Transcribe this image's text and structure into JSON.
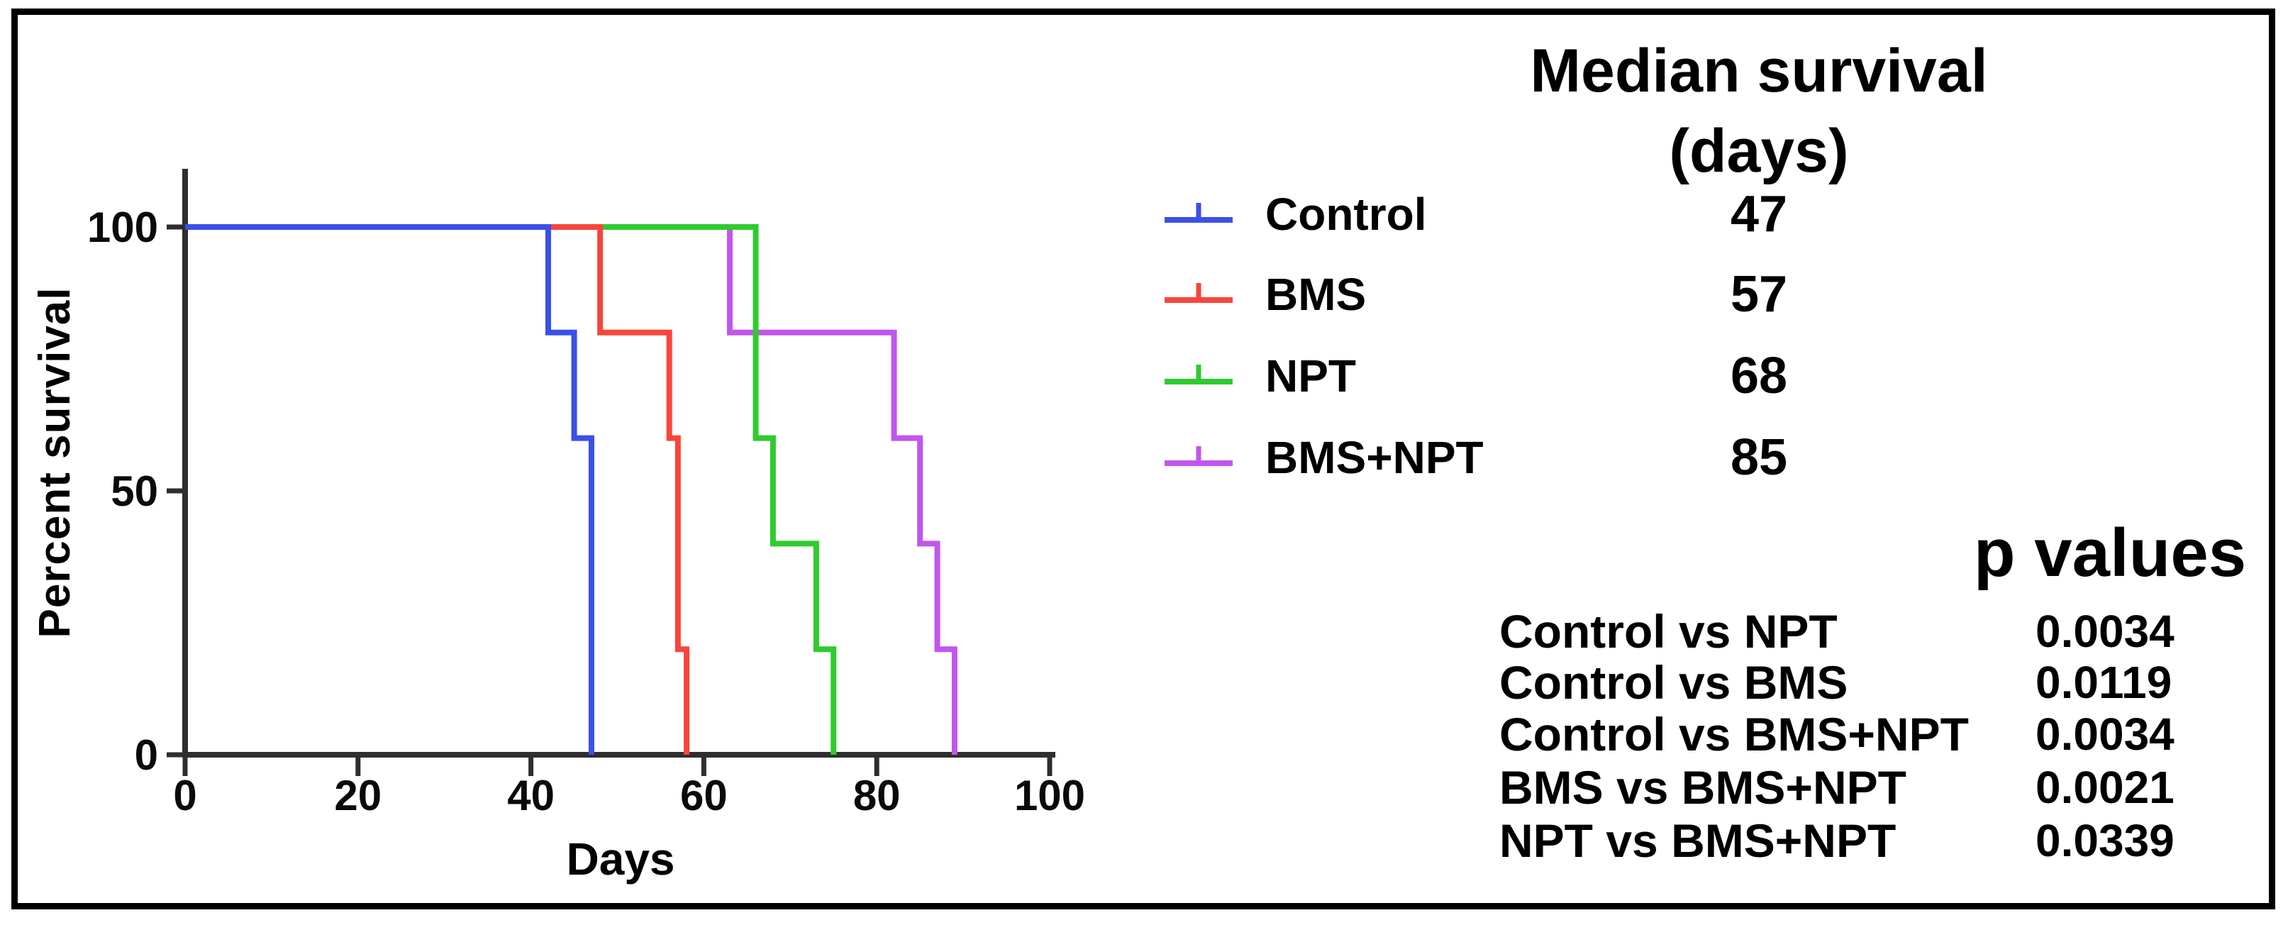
{
  "headings": {
    "median_line1": "Median survival",
    "median_line2": "(days)",
    "p_values": "p values"
  },
  "axes": {
    "xlabel": "Days",
    "ylabel": "Percent survival"
  },
  "chart_data": {
    "type": "line",
    "subtype": "kaplan-meier-step-survival",
    "xlabel": "Days",
    "ylabel": "Percent survival",
    "xlim": [
      0,
      100
    ],
    "ylim": [
      0,
      100
    ],
    "x_ticks": [
      0,
      20,
      40,
      60,
      80,
      100
    ],
    "y_ticks": [
      0,
      50,
      100
    ],
    "grid": false,
    "legend_position": "right",
    "series": [
      {
        "name": "Control",
        "color": "#3A50E8",
        "median_survival_days": "47",
        "survival_steps": [
          [
            0,
            100
          ],
          [
            42,
            80
          ],
          [
            45,
            60
          ],
          [
            47,
            0
          ]
        ]
      },
      {
        "name": "BMS",
        "color": "#F9453B",
        "median_survival_days": "57",
        "survival_steps": [
          [
            0,
            100
          ],
          [
            48,
            80
          ],
          [
            56,
            60
          ],
          [
            57,
            20
          ],
          [
            58,
            0
          ]
        ]
      },
      {
        "name": "NPT",
        "color": "#2FCB2F",
        "median_survival_days": "68",
        "survival_steps": [
          [
            0,
            100
          ],
          [
            66,
            60
          ],
          [
            68,
            40
          ],
          [
            73,
            20
          ],
          [
            75,
            0
          ]
        ]
      },
      {
        "name": "BMS+NPT",
        "color": "#C156EE",
        "median_survival_days": "85",
        "survival_steps": [
          [
            0,
            100
          ],
          [
            63,
            80
          ],
          [
            82,
            60
          ],
          [
            85,
            40
          ],
          [
            87,
            20
          ],
          [
            89,
            0
          ]
        ]
      }
    ]
  },
  "p_values": {
    "rows": [
      {
        "comparison": "Control vs NPT",
        "value": "0.0034"
      },
      {
        "comparison": "Control vs BMS",
        "value": "0.0119"
      },
      {
        "comparison": "Control vs BMS+NPT",
        "value": "0.0034"
      },
      {
        "comparison": "BMS vs BMS+NPT",
        "value": "0.0021"
      },
      {
        "comparison": "NPT vs BMS+NPT",
        "value": "0.0339"
      }
    ]
  }
}
